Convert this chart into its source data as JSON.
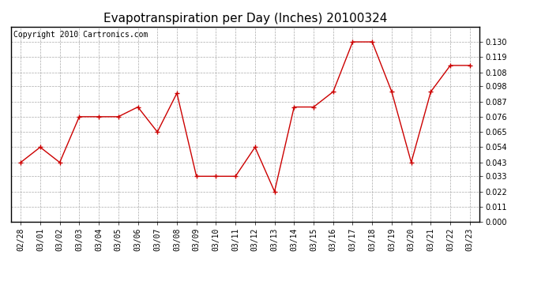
{
  "title": "Evapotranspiration per Day (Inches) 20100324",
  "copyright_text": "Copyright 2010 Cartronics.com",
  "x_labels": [
    "02/28",
    "03/01",
    "03/02",
    "03/03",
    "03/04",
    "03/05",
    "03/06",
    "03/07",
    "03/08",
    "03/09",
    "03/10",
    "03/11",
    "03/12",
    "03/13",
    "03/14",
    "03/15",
    "03/16",
    "03/17",
    "03/18",
    "03/19",
    "03/20",
    "03/21",
    "03/22",
    "03/23"
  ],
  "y_values": [
    0.043,
    0.054,
    0.043,
    0.076,
    0.076,
    0.076,
    0.083,
    0.065,
    0.093,
    0.033,
    0.033,
    0.033,
    0.054,
    0.022,
    0.083,
    0.083,
    0.094,
    0.13,
    0.13,
    0.094,
    0.043,
    0.094,
    0.113,
    0.113
  ],
  "line_color": "#cc0000",
  "marker": "+",
  "marker_size": 5,
  "marker_color": "#cc0000",
  "ylim": [
    0.0,
    0.141
  ],
  "yticks": [
    0.0,
    0.011,
    0.022,
    0.033,
    0.043,
    0.054,
    0.065,
    0.076,
    0.087,
    0.098,
    0.108,
    0.119,
    0.13
  ],
  "grid_color": "#aaaaaa",
  "background_color": "#ffffff",
  "title_fontsize": 11,
  "tick_fontsize": 7,
  "copyright_fontsize": 7,
  "border_color": "#000000"
}
